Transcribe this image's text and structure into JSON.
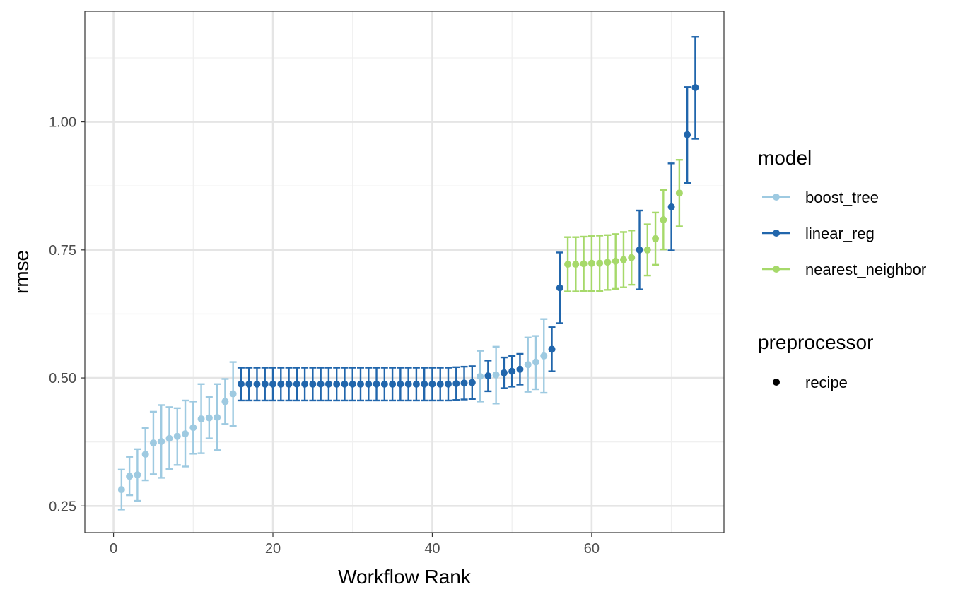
{
  "chart_data": {
    "type": "scatter",
    "error_bars": true,
    "xlabel": "Workflow Rank",
    "ylabel": "rmse",
    "xlim": [
      -3.6,
      76.6
    ],
    "ylim": [
      0.198,
      1.216
    ],
    "x_ticks": [
      0,
      20,
      40,
      60
    ],
    "x_tick_labels": [
      "0",
      "20",
      "40",
      "60"
    ],
    "y_ticks": [
      0.25,
      0.5,
      0.75,
      1.0
    ],
    "y_tick_labels": [
      "0.25",
      "0.50",
      "0.75",
      "1.00"
    ],
    "grid": true,
    "colors": {
      "boost_tree": "#9ecae1",
      "linear_reg": "#2166ac",
      "nearest_neighbor": "#a6d96a"
    },
    "legend": {
      "position": "right",
      "model_title": "model",
      "model_entries": [
        "boost_tree",
        "linear_reg",
        "nearest_neighbor"
      ],
      "preprocessor_title": "preprocessor",
      "preprocessor_entries": [
        "recipe"
      ]
    },
    "series": [
      {
        "name": "boost_tree",
        "points": [
          {
            "x": 1,
            "y": 0.282,
            "lo": 0.243,
            "hi": 0.321
          },
          {
            "x": 2,
            "y": 0.308,
            "lo": 0.271,
            "hi": 0.346
          },
          {
            "x": 3,
            "y": 0.311,
            "lo": 0.26,
            "hi": 0.361
          },
          {
            "x": 4,
            "y": 0.351,
            "lo": 0.3,
            "hi": 0.402
          },
          {
            "x": 5,
            "y": 0.373,
            "lo": 0.312,
            "hi": 0.434
          },
          {
            "x": 6,
            "y": 0.376,
            "lo": 0.305,
            "hi": 0.447
          },
          {
            "x": 7,
            "y": 0.382,
            "lo": 0.322,
            "hi": 0.443
          },
          {
            "x": 8,
            "y": 0.386,
            "lo": 0.33,
            "hi": 0.441
          },
          {
            "x": 9,
            "y": 0.391,
            "lo": 0.327,
            "hi": 0.456
          },
          {
            "x": 10,
            "y": 0.403,
            "lo": 0.352,
            "hi": 0.454
          },
          {
            "x": 11,
            "y": 0.42,
            "lo": 0.353,
            "hi": 0.488
          },
          {
            "x": 12,
            "y": 0.422,
            "lo": 0.382,
            "hi": 0.463
          },
          {
            "x": 13,
            "y": 0.423,
            "lo": 0.359,
            "hi": 0.488
          },
          {
            "x": 14,
            "y": 0.454,
            "lo": 0.41,
            "hi": 0.498
          },
          {
            "x": 15,
            "y": 0.469,
            "lo": 0.406,
            "hi": 0.531
          },
          {
            "x": 46,
            "y": 0.503,
            "lo": 0.454,
            "hi": 0.553
          },
          {
            "x": 48,
            "y": 0.506,
            "lo": 0.45,
            "hi": 0.561
          },
          {
            "x": 52,
            "y": 0.526,
            "lo": 0.473,
            "hi": 0.579
          },
          {
            "x": 53,
            "y": 0.531,
            "lo": 0.478,
            "hi": 0.582
          },
          {
            "x": 54,
            "y": 0.543,
            "lo": 0.471,
            "hi": 0.615
          }
        ]
      },
      {
        "name": "linear_reg",
        "points": [
          {
            "x": 16,
            "y": 0.488,
            "lo": 0.456,
            "hi": 0.52
          },
          {
            "x": 17,
            "y": 0.488,
            "lo": 0.456,
            "hi": 0.52
          },
          {
            "x": 18,
            "y": 0.488,
            "lo": 0.456,
            "hi": 0.52
          },
          {
            "x": 19,
            "y": 0.488,
            "lo": 0.456,
            "hi": 0.52
          },
          {
            "x": 20,
            "y": 0.488,
            "lo": 0.456,
            "hi": 0.52
          },
          {
            "x": 21,
            "y": 0.488,
            "lo": 0.456,
            "hi": 0.52
          },
          {
            "x": 22,
            "y": 0.488,
            "lo": 0.456,
            "hi": 0.52
          },
          {
            "x": 23,
            "y": 0.488,
            "lo": 0.456,
            "hi": 0.52
          },
          {
            "x": 24,
            "y": 0.488,
            "lo": 0.456,
            "hi": 0.52
          },
          {
            "x": 25,
            "y": 0.488,
            "lo": 0.456,
            "hi": 0.52
          },
          {
            "x": 26,
            "y": 0.488,
            "lo": 0.456,
            "hi": 0.52
          },
          {
            "x": 27,
            "y": 0.488,
            "lo": 0.456,
            "hi": 0.52
          },
          {
            "x": 28,
            "y": 0.488,
            "lo": 0.456,
            "hi": 0.52
          },
          {
            "x": 29,
            "y": 0.488,
            "lo": 0.456,
            "hi": 0.52
          },
          {
            "x": 30,
            "y": 0.488,
            "lo": 0.456,
            "hi": 0.52
          },
          {
            "x": 31,
            "y": 0.488,
            "lo": 0.456,
            "hi": 0.52
          },
          {
            "x": 32,
            "y": 0.488,
            "lo": 0.456,
            "hi": 0.52
          },
          {
            "x": 33,
            "y": 0.488,
            "lo": 0.456,
            "hi": 0.52
          },
          {
            "x": 34,
            "y": 0.488,
            "lo": 0.456,
            "hi": 0.52
          },
          {
            "x": 35,
            "y": 0.488,
            "lo": 0.456,
            "hi": 0.52
          },
          {
            "x": 36,
            "y": 0.488,
            "lo": 0.456,
            "hi": 0.52
          },
          {
            "x": 37,
            "y": 0.488,
            "lo": 0.456,
            "hi": 0.52
          },
          {
            "x": 38,
            "y": 0.488,
            "lo": 0.456,
            "hi": 0.52
          },
          {
            "x": 39,
            "y": 0.488,
            "lo": 0.456,
            "hi": 0.52
          },
          {
            "x": 40,
            "y": 0.488,
            "lo": 0.456,
            "hi": 0.52
          },
          {
            "x": 41,
            "y": 0.488,
            "lo": 0.456,
            "hi": 0.52
          },
          {
            "x": 42,
            "y": 0.488,
            "lo": 0.456,
            "hi": 0.52
          },
          {
            "x": 43,
            "y": 0.489,
            "lo": 0.457,
            "hi": 0.521
          },
          {
            "x": 44,
            "y": 0.49,
            "lo": 0.458,
            "hi": 0.522
          },
          {
            "x": 45,
            "y": 0.491,
            "lo": 0.459,
            "hi": 0.523
          },
          {
            "x": 47,
            "y": 0.504,
            "lo": 0.474,
            "hi": 0.534
          },
          {
            "x": 49,
            "y": 0.51,
            "lo": 0.48,
            "hi": 0.54
          },
          {
            "x": 50,
            "y": 0.513,
            "lo": 0.483,
            "hi": 0.543
          },
          {
            "x": 51,
            "y": 0.517,
            "lo": 0.487,
            "hi": 0.547
          },
          {
            "x": 55,
            "y": 0.556,
            "lo": 0.513,
            "hi": 0.599
          },
          {
            "x": 56,
            "y": 0.676,
            "lo": 0.607,
            "hi": 0.745
          },
          {
            "x": 66,
            "y": 0.75,
            "lo": 0.673,
            "hi": 0.827
          },
          {
            "x": 70,
            "y": 0.834,
            "lo": 0.749,
            "hi": 0.919
          },
          {
            "x": 72,
            "y": 0.975,
            "lo": 0.881,
            "hi": 1.068
          },
          {
            "x": 73,
            "y": 1.067,
            "lo": 0.967,
            "hi": 1.166
          }
        ]
      },
      {
        "name": "nearest_neighbor",
        "points": [
          {
            "x": 57,
            "y": 0.722,
            "lo": 0.669,
            "hi": 0.775
          },
          {
            "x": 58,
            "y": 0.722,
            "lo": 0.669,
            "hi": 0.775
          },
          {
            "x": 59,
            "y": 0.723,
            "lo": 0.67,
            "hi": 0.776
          },
          {
            "x": 60,
            "y": 0.724,
            "lo": 0.67,
            "hi": 0.777
          },
          {
            "x": 61,
            "y": 0.724,
            "lo": 0.67,
            "hi": 0.778
          },
          {
            "x": 62,
            "y": 0.726,
            "lo": 0.672,
            "hi": 0.779
          },
          {
            "x": 63,
            "y": 0.728,
            "lo": 0.674,
            "hi": 0.781
          },
          {
            "x": 64,
            "y": 0.731,
            "lo": 0.677,
            "hi": 0.785
          },
          {
            "x": 65,
            "y": 0.735,
            "lo": 0.682,
            "hi": 0.788
          },
          {
            "x": 67,
            "y": 0.75,
            "lo": 0.7,
            "hi": 0.8
          },
          {
            "x": 68,
            "y": 0.772,
            "lo": 0.721,
            "hi": 0.823
          },
          {
            "x": 69,
            "y": 0.809,
            "lo": 0.751,
            "hi": 0.867
          },
          {
            "x": 71,
            "y": 0.861,
            "lo": 0.796,
            "hi": 0.926
          }
        ]
      }
    ]
  }
}
